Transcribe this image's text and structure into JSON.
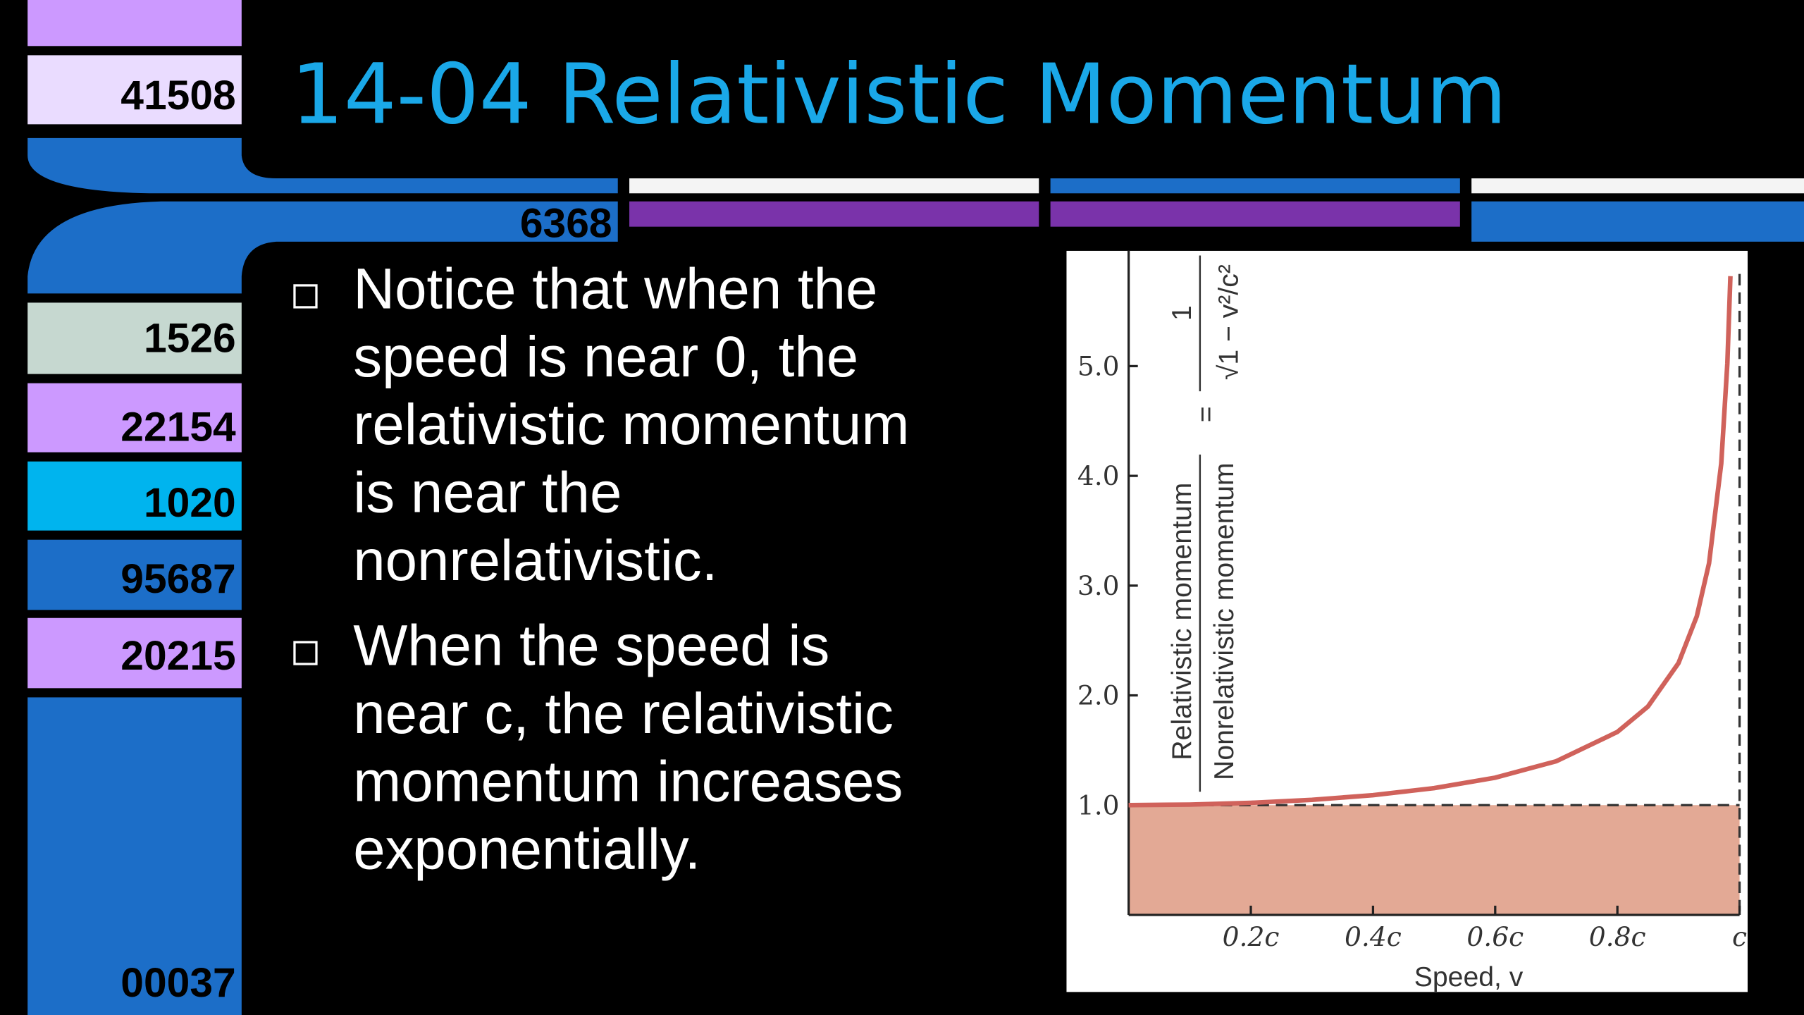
{
  "sidebar": {
    "labels": [
      "41508",
      "1526",
      "22154",
      "1020",
      "95687",
      "20215",
      "00037"
    ],
    "elbow_label": "6368"
  },
  "title": "14-04 Relativistic Momentum",
  "bullets": [
    [
      "Notice that when the",
      "speed is near 0, the",
      "relativistic momentum",
      "is near the",
      "nonrelativistic."
    ],
    [
      "When the speed is",
      "near c, the relativistic",
      "momentum increases",
      "exponentially."
    ]
  ],
  "chart_data": {
    "type": "line",
    "xlabel": "Speed, v",
    "ylabel": "Relativistic momentum",
    "ylabel2": "Nonrelativistic momentum",
    "formula_numerator": "1",
    "formula_denominator": "√1 − v²/c²",
    "x": [
      0,
      0.1,
      0.2,
      0.3,
      0.4,
      0.5,
      0.6,
      0.7,
      0.8,
      0.85,
      0.9,
      0.93,
      0.95,
      0.97,
      0.98,
      0.985
    ],
    "values": [
      1,
      1.005,
      1.021,
      1.048,
      1.091,
      1.155,
      1.25,
      1.4,
      1.667,
      1.898,
      2.294,
      2.721,
      3.203,
      4.113,
      5.025,
      5.82
    ],
    "color": "#d0625b",
    "reference_value": 1,
    "reference_color": "#e3a995",
    "xlim": [
      0,
      1
    ],
    "ylim": [
      0,
      6.05
    ],
    "xticks": [
      {
        "value": 0.2,
        "label": "0.2c"
      },
      {
        "value": 0.4,
        "label": "0.4c"
      },
      {
        "value": 0.6,
        "label": "0.6c"
      },
      {
        "value": 0.8,
        "label": "0.8c"
      },
      {
        "value": 1,
        "label": "c"
      }
    ],
    "yticks": [
      {
        "value": 1,
        "label": "1.0"
      },
      {
        "value": 2,
        "label": "2.0"
      },
      {
        "value": 3,
        "label": "3.0"
      },
      {
        "value": 4,
        "label": "4.0"
      },
      {
        "value": 5,
        "label": "5.0"
      }
    ]
  }
}
